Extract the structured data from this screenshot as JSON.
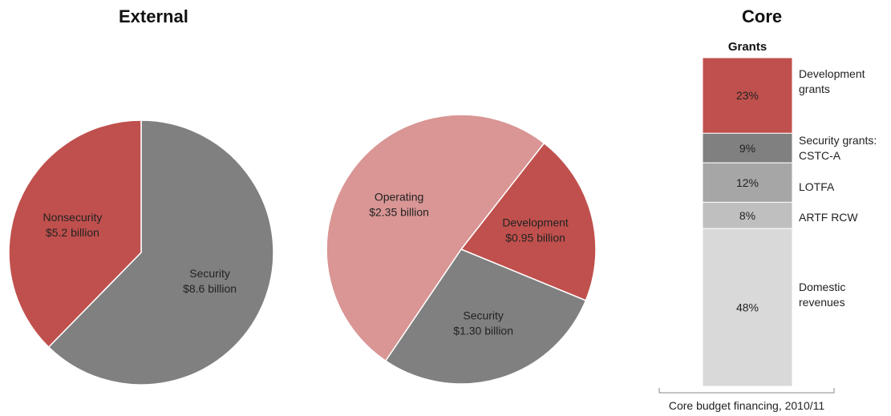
{
  "headings": {
    "external": "External",
    "core": "Core"
  },
  "colors": {
    "security": "#808080",
    "nonsecurity": "#c0504d",
    "operating": "#d99694",
    "development": "#c0504d"
  },
  "chart_data": [
    {
      "type": "pie",
      "slices": [
        {
          "label": "Security",
          "value_text": "$8.6 billion",
          "value": 8.6,
          "color": "#808080"
        },
        {
          "label": "Nonsecurity",
          "value_text": "$5.2 billion",
          "value": 5.2,
          "color": "#c0504d"
        }
      ]
    },
    {
      "type": "pie",
      "slices": [
        {
          "label": "Development",
          "value_text": "$0.95 billion",
          "value": 0.95,
          "color": "#c0504d"
        },
        {
          "label": "Security",
          "value_text": "$1.30 billion",
          "value": 1.3,
          "color": "#808080"
        },
        {
          "label": "Operating",
          "value_text": "$2.35 billion",
          "value": 2.35,
          "color": "#d99694"
        }
      ]
    },
    {
      "type": "bar",
      "stacked": true,
      "header": "Grants",
      "xlabel": "Core budget financing, 2010/11",
      "segments": [
        {
          "label": "Development grants",
          "value": 23,
          "value_text": "23%",
          "color": "#c0504d"
        },
        {
          "label": "Security grants: CSTC-A",
          "value": 9,
          "value_text": "9%",
          "color": "#808080"
        },
        {
          "label": "LOTFA",
          "value": 12,
          "value_text": "12%",
          "color": "#a6a6a6"
        },
        {
          "label": "ARTF RCW",
          "value": 8,
          "value_text": "8%",
          "color": "#bfbfbf"
        },
        {
          "label": "Domestic revenues",
          "value": 48,
          "value_text": "48%",
          "color": "#d9d9d9"
        }
      ]
    }
  ]
}
